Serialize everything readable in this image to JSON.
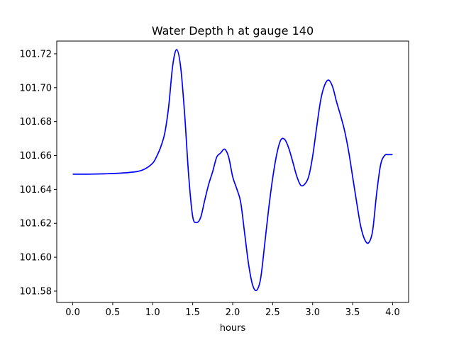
{
  "chart_data": {
    "type": "line",
    "title": "Water Depth h at gauge 140",
    "xlabel": "hours",
    "ylabel": "",
    "xlim": [
      -0.2,
      4.2
    ],
    "ylim": [
      101.5733,
      101.7275
    ],
    "grid": false,
    "x_ticks": [
      0.0,
      0.5,
      1.0,
      1.5,
      2.0,
      2.5,
      3.0,
      3.5,
      4.0
    ],
    "x_tick_labels": [
      "0.0",
      "0.5",
      "1.0",
      "1.5",
      "2.0",
      "2.5",
      "3.0",
      "3.5",
      "4.0"
    ],
    "y_ticks": [
      101.58,
      101.6,
      101.62,
      101.64,
      101.66,
      101.68,
      101.7,
      101.72
    ],
    "y_tick_labels": [
      "101.58",
      "101.60",
      "101.62",
      "101.64",
      "101.66",
      "101.68",
      "101.70",
      "101.72"
    ],
    "series": [
      {
        "color": "#0000ff",
        "x": [
          0.0,
          0.2,
          0.4,
          0.6,
          0.8,
          0.9,
          1.0,
          1.05,
          1.1,
          1.15,
          1.2,
          1.25,
          1.3,
          1.35,
          1.4,
          1.45,
          1.5,
          1.55,
          1.6,
          1.65,
          1.7,
          1.75,
          1.8,
          1.85,
          1.9,
          1.95,
          2.0,
          2.05,
          2.1,
          2.15,
          2.2,
          2.25,
          2.3,
          2.35,
          2.4,
          2.45,
          2.5,
          2.55,
          2.6,
          2.65,
          2.7,
          2.75,
          2.8,
          2.85,
          2.9,
          2.95,
          3.0,
          3.05,
          3.1,
          3.15,
          3.2,
          3.25,
          3.3,
          3.35,
          3.4,
          3.45,
          3.5,
          3.55,
          3.6,
          3.65,
          3.7,
          3.75,
          3.8,
          3.85,
          3.9,
          3.95,
          4.0
        ],
        "y": [
          101.649,
          101.649,
          101.6492,
          101.6496,
          101.6505,
          101.652,
          101.6555,
          101.6595,
          101.665,
          101.673,
          101.689,
          101.713,
          101.7225,
          101.712,
          101.684,
          101.648,
          101.624,
          101.6205,
          101.6235,
          101.6335,
          101.643,
          101.6505,
          101.659,
          101.6615,
          101.6637,
          101.659,
          101.6475,
          101.6405,
          101.6325,
          101.614,
          101.5955,
          101.5835,
          101.5805,
          101.5875,
          101.6075,
          101.6285,
          101.6465,
          101.6605,
          101.669,
          101.6695,
          101.6645,
          101.6565,
          101.648,
          101.6425,
          101.643,
          101.6475,
          101.6595,
          101.6765,
          101.6925,
          101.7015,
          101.7045,
          101.7005,
          101.6915,
          101.6835,
          101.6745,
          101.6625,
          101.6475,
          101.6325,
          101.6185,
          101.6105,
          101.6085,
          101.6155,
          101.6375,
          101.6545,
          101.66,
          101.6605,
          101.6605
        ]
      }
    ]
  }
}
